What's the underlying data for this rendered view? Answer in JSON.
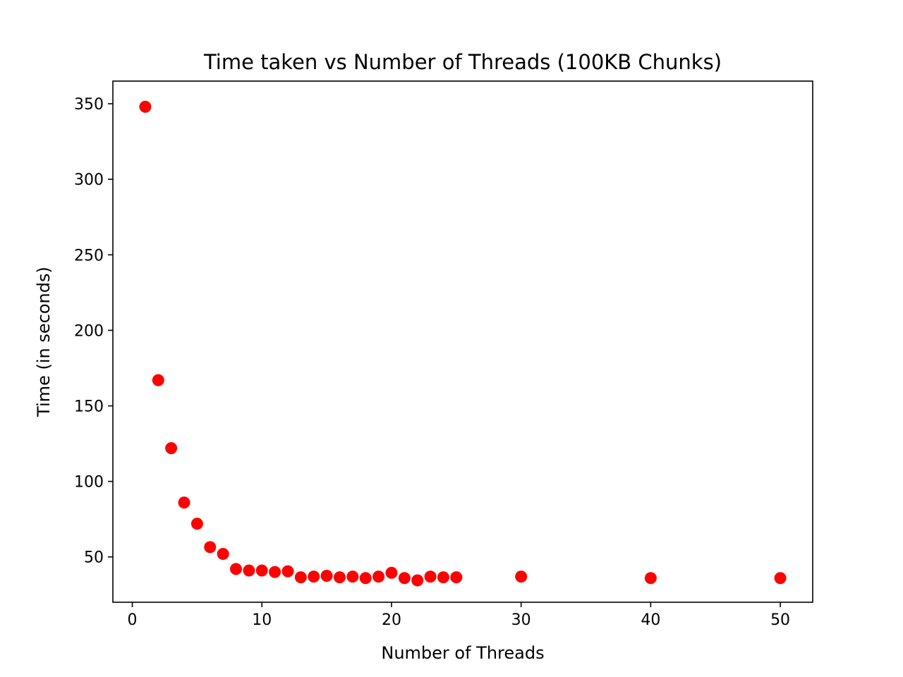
{
  "chart_data": {
    "type": "scatter",
    "title": "Time taken vs Number of Threads (100KB Chunks)",
    "xlabel": "Number of Threads",
    "ylabel": "Time (in seconds)",
    "xlim": [
      -1.5,
      52.5
    ],
    "ylim": [
      20,
      365
    ],
    "xticks": [
      0,
      10,
      20,
      30,
      40,
      50
    ],
    "yticks": [
      50,
      100,
      150,
      200,
      250,
      300,
      350
    ],
    "grid": false,
    "marker_color": "#ff0000",
    "x": [
      1,
      2,
      3,
      4,
      5,
      6,
      7,
      8,
      9,
      10,
      11,
      12,
      13,
      14,
      15,
      16,
      17,
      18,
      19,
      20,
      21,
      22,
      23,
      24,
      25,
      30,
      40,
      50
    ],
    "y": [
      348,
      167,
      122,
      86,
      72,
      56.5,
      52,
      42,
      41,
      41,
      40,
      40.5,
      36.5,
      37,
      37.5,
      36.5,
      37,
      36,
      37,
      39.5,
      36,
      34.5,
      37,
      36.5,
      36.5,
      37,
      36,
      36
    ]
  }
}
